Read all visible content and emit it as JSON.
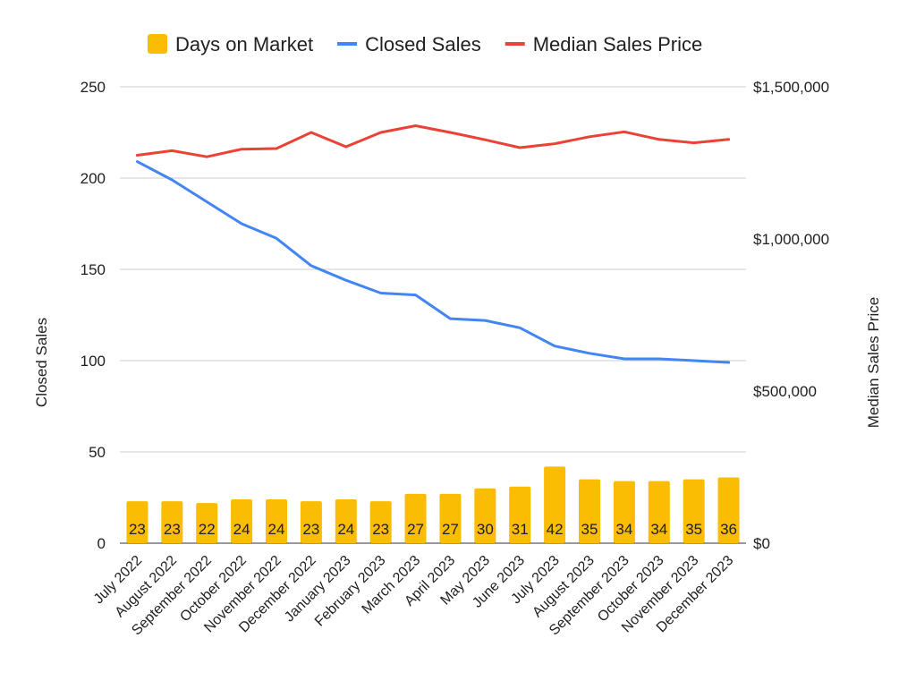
{
  "chart_data": {
    "type": "combo",
    "categories": [
      "July 2022",
      "August 2022",
      "September 2022",
      "October 2022",
      "November 2022",
      "December 2022",
      "January 2023",
      "February 2023",
      "March 2023",
      "April 2023",
      "May 2023",
      "June 2023",
      "July 2023",
      "August 2023",
      "September 2023",
      "October 2023",
      "November 2023",
      "December 2023"
    ],
    "series": [
      {
        "name": "Days on Market",
        "kind": "bar",
        "axis": "left",
        "color": "#FBBC04",
        "values": [
          23,
          23,
          22,
          24,
          24,
          23,
          24,
          23,
          27,
          27,
          30,
          31,
          42,
          35,
          34,
          34,
          35,
          36
        ]
      },
      {
        "name": "Closed Sales",
        "kind": "line",
        "axis": "left",
        "color": "#4285F4",
        "values": [
          209,
          199,
          187,
          175,
          167,
          152,
          144,
          137,
          136,
          123,
          122,
          118,
          108,
          104,
          101,
          101,
          100,
          99
        ]
      },
      {
        "name": "Median Sales Price",
        "kind": "line",
        "axis": "right",
        "color": "#EA4335",
        "values": [
          1275000,
          1290000,
          1270000,
          1295000,
          1297000,
          1350000,
          1303000,
          1350000,
          1372000,
          1350000,
          1326000,
          1300000,
          1313000,
          1336000,
          1352000,
          1327000,
          1316000,
          1327000
        ]
      }
    ],
    "ylabel": "Closed Sales",
    "ylabel_right": "Median Sales Price",
    "ylim": [
      0,
      250
    ],
    "ylim_right": [
      0,
      1500000
    ],
    "yticks": [
      "0",
      "50",
      "100",
      "150",
      "200",
      "250"
    ],
    "yticks_right": [
      "$0",
      "$500,000",
      "$1,000,000",
      "$1,500,000"
    ],
    "grid": true,
    "legend_position": "top"
  }
}
